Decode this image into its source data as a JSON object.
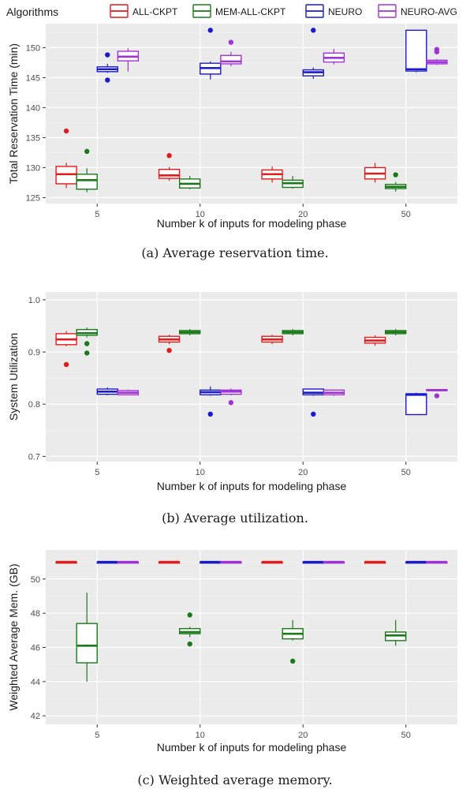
{
  "legend": {
    "title": "Algorithms",
    "position": "top",
    "entries": [
      {
        "name": "ALL-CKPT",
        "color": "#e41a1c"
      },
      {
        "name": "MEM-ALL-CKPT",
        "color": "#1a7a1a"
      },
      {
        "name": "NEURO",
        "color": "#1a1acc"
      },
      {
        "name": "NEURO-AVG",
        "color": "#a033d6"
      }
    ]
  },
  "chart_data": [
    {
      "type": "box",
      "caption": "(a) Average reservation time.",
      "xlabel": "Number k of inputs for modeling phase",
      "ylabel": "Total Reservation Time (min)",
      "categories": [
        "5",
        "10",
        "20",
        "50"
      ],
      "ylim": [
        124,
        154
      ],
      "yticks": [
        125,
        130,
        135,
        140,
        145,
        150
      ],
      "grid": true,
      "series": [
        {
          "name": "ALL-CKPT",
          "boxes": [
            {
              "min": 126.6,
              "q1": 127.3,
              "median": 128.9,
              "q3": 130.2,
              "max": 130.8,
              "outliers": [
                136.1
              ]
            },
            {
              "min": 127.8,
              "q1": 128.2,
              "median": 128.7,
              "q3": 129.7,
              "max": 130.1,
              "outliers": [
                132.0
              ]
            },
            {
              "min": 127.5,
              "q1": 128.1,
              "median": 128.9,
              "q3": 129.6,
              "max": 130.2,
              "outliers": []
            },
            {
              "min": 127.5,
              "q1": 128.1,
              "median": 129.0,
              "q3": 130.0,
              "max": 130.8,
              "outliers": []
            }
          ]
        },
        {
          "name": "MEM-ALL-CKPT",
          "boxes": [
            {
              "min": 125.9,
              "q1": 126.4,
              "median": 127.9,
              "q3": 128.9,
              "max": 129.9,
              "outliers": [
                132.7
              ]
            },
            {
              "min": 126.4,
              "q1": 126.6,
              "median": 127.3,
              "q3": 128.1,
              "max": 128.6,
              "outliers": []
            },
            {
              "min": 126.5,
              "q1": 126.7,
              "median": 127.4,
              "q3": 127.9,
              "max": 128.6,
              "outliers": []
            },
            {
              "min": 126.0,
              "q1": 126.5,
              "median": 126.8,
              "q3": 127.2,
              "max": 127.6,
              "outliers": [
                128.8
              ]
            }
          ]
        },
        {
          "name": "NEURO",
          "boxes": [
            {
              "min": 145.8,
              "q1": 146.0,
              "median": 146.4,
              "q3": 146.8,
              "max": 147.3,
              "outliers": [
                148.8,
                144.6
              ]
            },
            {
              "min": 144.7,
              "q1": 145.6,
              "median": 146.6,
              "q3": 147.4,
              "max": 147.7,
              "outliers": [
                152.9
              ]
            },
            {
              "min": 144.8,
              "q1": 145.3,
              "median": 145.9,
              "q3": 146.3,
              "max": 146.7,
              "outliers": [
                152.9
              ]
            },
            {
              "min": 145.9,
              "q1": 146.1,
              "median": 146.4,
              "q3": 152.9,
              "max": 152.9,
              "outliers": []
            }
          ]
        },
        {
          "name": "NEURO-AVG",
          "boxes": [
            {
              "min": 146.0,
              "q1": 147.8,
              "median": 148.5,
              "q3": 149.4,
              "max": 149.9,
              "outliers": []
            },
            {
              "min": 146.9,
              "q1": 147.3,
              "median": 147.7,
              "q3": 148.7,
              "max": 149.3,
              "outliers": [
                150.9
              ]
            },
            {
              "min": 147.2,
              "q1": 147.6,
              "median": 148.3,
              "q3": 149.1,
              "max": 149.8,
              "outliers": []
            },
            {
              "min": 147.1,
              "q1": 147.3,
              "median": 147.6,
              "q3": 147.9,
              "max": 148.1,
              "outliers": [
                149.3,
                149.7
              ]
            }
          ]
        }
      ]
    },
    {
      "type": "box",
      "caption": "(b) Average utilization.",
      "xlabel": "Number k of inputs for modeling phase",
      "ylabel": "System Utilization",
      "categories": [
        "5",
        "10",
        "20",
        "50"
      ],
      "ylim": [
        0.69,
        1.015
      ],
      "yticks": [
        "0.7",
        "0.8",
        "0.9",
        "1.0"
      ],
      "grid": true,
      "series": [
        {
          "name": "ALL-CKPT",
          "boxes": [
            {
              "min": 0.911,
              "q1": 0.914,
              "median": 0.924,
              "q3": 0.935,
              "max": 0.94,
              "outliers": [
                0.876
              ]
            },
            {
              "min": 0.915,
              "q1": 0.919,
              "median": 0.924,
              "q3": 0.93,
              "max": 0.933,
              "outliers": [
                0.903
              ]
            },
            {
              "min": 0.915,
              "q1": 0.919,
              "median": 0.924,
              "q3": 0.93,
              "max": 0.933,
              "outliers": []
            },
            {
              "min": 0.912,
              "q1": 0.917,
              "median": 0.922,
              "q3": 0.928,
              "max": 0.932,
              "outliers": []
            }
          ]
        },
        {
          "name": "MEM-ALL-CKPT",
          "boxes": [
            {
              "min": 0.928,
              "q1": 0.932,
              "median": 0.936,
              "q3": 0.943,
              "max": 0.947,
              "outliers": [
                0.916,
                0.898
              ]
            },
            {
              "min": 0.932,
              "q1": 0.935,
              "median": 0.938,
              "q3": 0.941,
              "max": 0.944,
              "outliers": []
            },
            {
              "min": 0.932,
              "q1": 0.935,
              "median": 0.938,
              "q3": 0.941,
              "max": 0.944,
              "outliers": []
            },
            {
              "min": 0.932,
              "q1": 0.935,
              "median": 0.938,
              "q3": 0.941,
              "max": 0.944,
              "outliers": []
            }
          ]
        },
        {
          "name": "NEURO",
          "boxes": [
            {
              "min": 0.817,
              "q1": 0.819,
              "median": 0.824,
              "q3": 0.829,
              "max": 0.832,
              "outliers": []
            },
            {
              "min": 0.816,
              "q1": 0.818,
              "median": 0.823,
              "q3": 0.827,
              "max": 0.834,
              "outliers": [
                0.781
              ]
            },
            {
              "min": 0.816,
              "q1": 0.818,
              "median": 0.822,
              "q3": 0.829,
              "max": 0.829,
              "outliers": [
                0.781
              ]
            },
            {
              "min": 0.78,
              "q1": 0.78,
              "median": 0.818,
              "q3": 0.82,
              "max": 0.822,
              "outliers": []
            }
          ]
        },
        {
          "name": "NEURO-AVG",
          "boxes": [
            {
              "min": 0.817,
              "q1": 0.818,
              "median": 0.822,
              "q3": 0.826,
              "max": 0.828,
              "outliers": []
            },
            {
              "min": 0.817,
              "q1": 0.819,
              "median": 0.824,
              "q3": 0.827,
              "max": 0.83,
              "outliers": [
                0.803
              ]
            },
            {
              "min": 0.816,
              "q1": 0.818,
              "median": 0.822,
              "q3": 0.827,
              "max": 0.828,
              "outliers": []
            },
            {
              "min": 0.826,
              "q1": 0.826,
              "median": 0.827,
              "q3": 0.828,
              "max": 0.828,
              "outliers": [
                0.816
              ]
            }
          ]
        }
      ]
    },
    {
      "type": "box",
      "caption": "(c) Weighted average memory.",
      "xlabel": "Number k of inputs for modeling phase",
      "ylabel": "Weighted Average Mem. (GB)",
      "categories": [
        "5",
        "10",
        "20",
        "50"
      ],
      "ylim": [
        41.5,
        51.7
      ],
      "yticks": [
        42,
        44,
        46,
        48,
        50
      ],
      "grid": true,
      "series": [
        {
          "name": "ALL-CKPT",
          "boxes": [
            {
              "min": 51.0,
              "q1": 51.0,
              "median": 51.0,
              "q3": 51.0,
              "max": 51.0,
              "outliers": []
            },
            {
              "min": 51.0,
              "q1": 51.0,
              "median": 51.0,
              "q3": 51.0,
              "max": 51.0,
              "outliers": []
            },
            {
              "min": 51.0,
              "q1": 51.0,
              "median": 51.0,
              "q3": 51.0,
              "max": 51.0,
              "outliers": []
            },
            {
              "min": 51.0,
              "q1": 51.0,
              "median": 51.0,
              "q3": 51.0,
              "max": 51.0,
              "outliers": []
            }
          ]
        },
        {
          "name": "MEM-ALL-CKPT",
          "boxes": [
            {
              "min": 44.0,
              "q1": 45.1,
              "median": 46.1,
              "q3": 47.4,
              "max": 49.2,
              "outliers": []
            },
            {
              "min": 46.6,
              "q1": 46.8,
              "median": 46.9,
              "q3": 47.1,
              "max": 47.2,
              "outliers": [
                47.9,
                46.2
              ]
            },
            {
              "min": 46.4,
              "q1": 46.5,
              "median": 46.8,
              "q3": 47.1,
              "max": 47.6,
              "outliers": [
                45.2
              ]
            },
            {
              "min": 46.1,
              "q1": 46.4,
              "median": 46.7,
              "q3": 46.9,
              "max": 47.6,
              "outliers": []
            }
          ]
        },
        {
          "name": "NEURO",
          "boxes": [
            {
              "min": 51.0,
              "q1": 51.0,
              "median": 51.0,
              "q3": 51.0,
              "max": 51.0,
              "outliers": []
            },
            {
              "min": 51.0,
              "q1": 51.0,
              "median": 51.0,
              "q3": 51.0,
              "max": 51.0,
              "outliers": []
            },
            {
              "min": 51.0,
              "q1": 51.0,
              "median": 51.0,
              "q3": 51.0,
              "max": 51.0,
              "outliers": []
            },
            {
              "min": 51.0,
              "q1": 51.0,
              "median": 51.0,
              "q3": 51.0,
              "max": 51.0,
              "outliers": []
            }
          ]
        },
        {
          "name": "NEURO-AVG",
          "boxes": [
            {
              "min": 51.0,
              "q1": 51.0,
              "median": 51.0,
              "q3": 51.0,
              "max": 51.0,
              "outliers": []
            },
            {
              "min": 51.0,
              "q1": 51.0,
              "median": 51.0,
              "q3": 51.0,
              "max": 51.0,
              "outliers": []
            },
            {
              "min": 51.0,
              "q1": 51.0,
              "median": 51.0,
              "q3": 51.0,
              "max": 51.0,
              "outliers": []
            },
            {
              "min": 51.0,
              "q1": 51.0,
              "median": 51.0,
              "q3": 51.0,
              "max": 51.0,
              "outliers": []
            }
          ]
        }
      ]
    }
  ]
}
